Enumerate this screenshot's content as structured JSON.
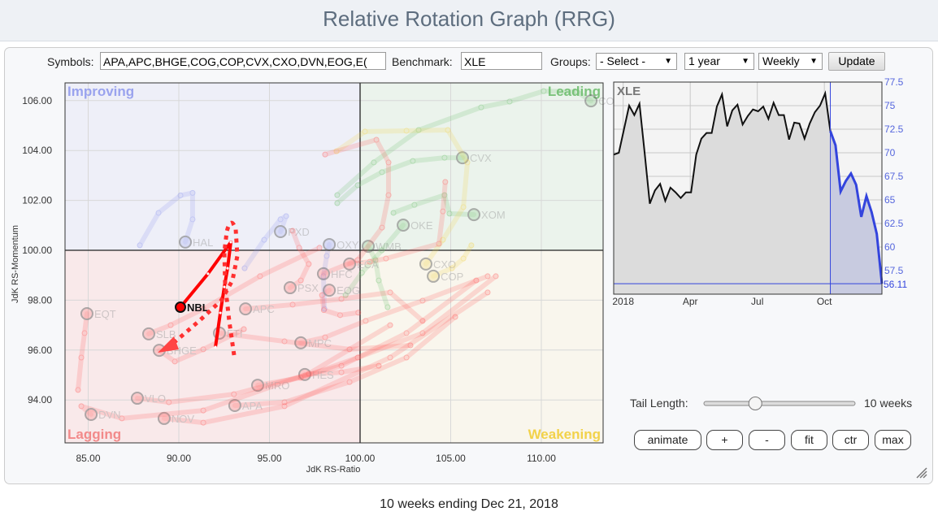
{
  "header": {
    "title": "Relative Rotation Graph (RRG)"
  },
  "controls": {
    "symbols_label": "Symbols:",
    "symbols_value": "APA,APC,BHGE,COG,COP,CVX,CXO,DVN,EOG,E(",
    "benchmark_label": "Benchmark:",
    "benchmark_value": "XLE",
    "groups_label": "Groups:",
    "groups_selected": "- Select -",
    "period_selected": "1 year",
    "frequency_selected": "Weekly",
    "update_label": "Update",
    "tail_length_label": "Tail Length:",
    "tail_length_value": "10 weeks",
    "tail_length_weeks": 10,
    "tail_slider_fraction": 0.34,
    "buttons": [
      "animate",
      "+",
      "-",
      "fit",
      "ctr",
      "max"
    ]
  },
  "footer": {
    "caption": "10 weeks ending Dec 21, 2018"
  },
  "chart_data": [
    {
      "type": "scatter",
      "title": "",
      "xlabel": "JdK RS-Ratio",
      "ylabel": "JdK RS-Momentum",
      "xlim": [
        82.9,
        112.6
      ],
      "ylim": [
        92.5,
        106.6
      ],
      "xticks": [
        "85.00",
        "90.00",
        "95.00",
        "100.00",
        "105.00",
        "110.00"
      ],
      "yticks": [
        "94.00",
        "96.00",
        "98.00",
        "100.00",
        "102.00",
        "104.00",
        "106.00"
      ],
      "grid": true,
      "quadrants": {
        "improving": "Improving",
        "leading": "Leading",
        "weakening": "Weakening",
        "lagging": "Lagging"
      },
      "colors": {
        "improving": "#8c95ee",
        "leading": "#6cbf6c",
        "weakening": "#f2d24a",
        "lagging": "#ff5a5a",
        "highlight": "#ff0000"
      },
      "highlight": {
        "name": "NBL",
        "tail": [
          [
            92.02,
            96.12
          ],
          [
            92.29,
            97.49
          ],
          [
            92.51,
            98.53
          ],
          [
            92.69,
            99.28
          ],
          [
            92.87,
            100.33
          ],
          [
            91.61,
            99.06
          ],
          [
            90.09,
            97.72
          ]
        ]
      },
      "series": [
        {
          "name": "HAL",
          "q": "improving",
          "tail": [
            [
              87.85,
              100.2
            ],
            [
              88.88,
              101.5
            ],
            [
              90.09,
              102.2
            ],
            [
              90.76,
              102.3
            ],
            [
              90.76,
              101.24
            ],
            [
              90.36,
              100.33
            ]
          ]
        },
        {
          "name": "PXD",
          "q": "improving",
          "tail": [
            [
              93.63,
              99.28
            ],
            [
              94.71,
              100.42
            ],
            [
              95.61,
              101.24
            ],
            [
              95.92,
              101.37
            ],
            [
              95.61,
              100.75
            ]
          ]
        },
        {
          "name": "OXY",
          "q": "improving",
          "tail": [
            [
              98.03,
              97.65
            ],
            [
              97.98,
              98.96
            ],
            [
              98.16,
              99.77
            ],
            [
              98.3,
              100.23
            ]
          ]
        },
        {
          "name": "WMB",
          "q": "leading",
          "tail": [
            [
              101.52,
              97.72
            ],
            [
              101.03,
              98.79
            ],
            [
              100.85,
              99.61
            ],
            [
              100.45,
              100.16
            ]
          ]
        },
        {
          "name": "OKE",
          "q": "leading",
          "tail": [
            [
              99.2,
              98.2
            ],
            [
              100.1,
              99.1
            ],
            [
              101.2,
              100.0
            ],
            [
              102.38,
              101.01
            ]
          ]
        },
        {
          "name": "CVX",
          "q": "leading",
          "tail": [
            [
              98.74,
              101.89
            ],
            [
              99.87,
              102.61
            ],
            [
              101.21,
              103.13
            ],
            [
              102.91,
              103.58
            ],
            [
              104.66,
              103.71
            ],
            [
              105.65,
              103.71
            ]
          ]
        },
        {
          "name": "XOM",
          "q": "leading",
          "tail": [
            [
              101.84,
              101.5
            ],
            [
              103.0,
              101.82
            ],
            [
              104.66,
              102.21
            ],
            [
              104.93,
              101.47
            ],
            [
              106.28,
              101.43
            ]
          ]
        },
        {
          "name": "COG",
          "q": "leading",
          "tail": [
            [
              98.74,
              102.21
            ],
            [
              100.76,
              103.52
            ],
            [
              103.23,
              104.82
            ],
            [
              106.68,
              105.73
            ],
            [
              108.25,
              105.96
            ],
            [
              110.13,
              106.38
            ],
            [
              111.97,
              106.35
            ],
            [
              112.74,
              105.99
            ]
          ]
        },
        {
          "name": "CXO",
          "q": "weakening",
          "tail": [
            [
              98.7,
              103.97
            ],
            [
              100.27,
              104.76
            ],
            [
              102.56,
              104.79
            ],
            [
              104.84,
              104.82
            ],
            [
              105.92,
              103.52
            ],
            [
              105.7,
              101.73
            ],
            [
              104.57,
              100.42
            ],
            [
              103.63,
              99.45
            ]
          ]
        },
        {
          "name": "COP",
          "q": "weakening",
          "tail": [
            [
              106.14,
              100.2
            ],
            [
              105.7,
              99.67
            ],
            [
              105.07,
              99.28
            ],
            [
              104.04,
              98.96
            ]
          ]
        },
        {
          "name": "ECA",
          "q": "lagging",
          "tail": [
            [
              104.7,
              102.74
            ],
            [
              104.57,
              101.56
            ],
            [
              104.35,
              100.26
            ],
            [
              101.43,
              99.67
            ],
            [
              100.54,
              99.54
            ],
            [
              99.42,
              99.45
            ]
          ]
        },
        {
          "name": "HFC",
          "q": "lagging",
          "tail": [
            [
              98.07,
              103.84
            ],
            [
              100.9,
              104.43
            ],
            [
              101.57,
              103.52
            ],
            [
              101.57,
              102.21
            ],
            [
              101.21,
              100.91
            ],
            [
              99.87,
              99.61
            ],
            [
              97.98,
              99.06
            ]
          ]
        },
        {
          "name": "EOG",
          "q": "lagging",
          "tail": [
            [
              99.9,
              97.5
            ],
            [
              98.9,
              97.4
            ],
            [
              98.0,
              97.6
            ],
            [
              97.9,
              98.2
            ],
            [
              98.3,
              98.4
            ]
          ]
        },
        {
          "name": "PSX",
          "q": "lagging",
          "tail": [
            [
              96.28,
              100.78
            ],
            [
              96.64,
              100.1
            ],
            [
              97.17,
              99.45
            ],
            [
              96.73,
              98.79
            ],
            [
              96.14,
              98.5
            ]
          ]
        },
        {
          "name": "APC",
          "q": "lagging",
          "tail": [
            [
              103.45,
              97.17
            ],
            [
              101.66,
              98.31
            ],
            [
              98.97,
              98.05
            ],
            [
              96.28,
              97.82
            ],
            [
              93.68,
              97.65
            ]
          ]
        },
        {
          "name": "FTI",
          "q": "lagging",
          "tail": [
            [
              102.78,
              96.19
            ],
            [
              99.42,
              96.03
            ],
            [
              95.83,
              96.35
            ],
            [
              92.24,
              96.68
            ]
          ]
        },
        {
          "name": "MPC",
          "q": "lagging",
          "tail": [
            [
              107.04,
              98.96
            ],
            [
              103.45,
              97.98
            ],
            [
              100.31,
              97.17
            ],
            [
              98.07,
              96.51
            ],
            [
              96.73,
              96.29
            ]
          ]
        },
        {
          "name": "HES",
          "q": "lagging",
          "tail": [
            [
              101.03,
              95.37
            ],
            [
              98.97,
              95.11
            ],
            [
              96.95,
              95.02
            ]
          ]
        },
        {
          "name": "MRO",
          "q": "lagging",
          "tail": [
            [
              107.49,
              98.96
            ],
            [
              103.45,
              96.68
            ],
            [
              99.87,
              95.7
            ],
            [
              96.73,
              94.89
            ],
            [
              94.35,
              94.59
            ]
          ]
        },
        {
          "name": "APA",
          "q": "lagging",
          "tail": [
            [
              105.25,
              97.33
            ],
            [
              102.56,
              95.7
            ],
            [
              99.42,
              94.72
            ],
            [
              95.83,
              93.91
            ],
            [
              93.09,
              93.78
            ]
          ]
        },
        {
          "name": "VLO",
          "q": "lagging",
          "tail": [
            [
              106.41,
              98.79
            ],
            [
              102.56,
              96.68
            ],
            [
              98.97,
              95.37
            ],
            [
              93.04,
              94.23
            ],
            [
              89.45,
              93.91
            ],
            [
              87.71,
              94.07
            ]
          ]
        },
        {
          "name": "NOV",
          "q": "lagging",
          "tail": [
            [
              107.04,
              98.31
            ],
            [
              101.66,
              95.7
            ],
            [
              95.83,
              93.75
            ],
            [
              91.35,
              93.09
            ],
            [
              89.19,
              93.26
            ]
          ]
        },
        {
          "name": "DVN",
          "q": "lagging",
          "tail": [
            [
              101.66,
              97.0
            ],
            [
              97.17,
              95.05
            ],
            [
              91.35,
              93.58
            ],
            [
              86.86,
              93.26
            ],
            [
              84.62,
              93.75
            ],
            [
              85.16,
              93.42
            ]
          ]
        },
        {
          "name": "EQT",
          "q": "lagging",
          "tail": [
            [
              84.44,
              94.4
            ],
            [
              84.62,
              95.7
            ],
            [
              84.8,
              96.68
            ],
            [
              84.93,
              97.46
            ]
          ]
        },
        {
          "name": "SLB",
          "q": "lagging",
          "tail": [
            [
              97.76,
              100.1
            ],
            [
              94.48,
              98.96
            ],
            [
              91.35,
              97.65
            ],
            [
              89.55,
              97.0
            ],
            [
              88.34,
              96.65
            ]
          ]
        },
        {
          "name": "BHGE",
          "q": "lagging",
          "tail": [
            [
              93.59,
              96.84
            ],
            [
              91.35,
              96.03
            ],
            [
              89.78,
              95.54
            ],
            [
              88.92,
              95.99
            ]
          ]
        }
      ]
    },
    {
      "type": "area",
      "title": "XLE",
      "ylim": [
        55,
        77.5
      ],
      "yticks": [
        "77.5",
        "75",
        "72.5",
        "70",
        "67.5",
        "65",
        "62.5",
        "60",
        "57.5"
      ],
      "xticks": [
        "2018",
        "Apr",
        "Jul",
        "Oct"
      ],
      "last_value": "56.11",
      "colors": {
        "line": "#111111",
        "tail": "#3344dd",
        "fill": "#dcdcdc",
        "tail_fill": "#c8cbe0"
      },
      "values": [
        69.8,
        70.0,
        72.5,
        75.0,
        74.0,
        75.2,
        70.0,
        64.6,
        66.0,
        66.7,
        64.9,
        66.3,
        65.8,
        65.2,
        65.8,
        65.8,
        69.8,
        71.5,
        72.1,
        72.1,
        74.9,
        76.2,
        72.8,
        74.5,
        75.1,
        73.0,
        73.9,
        74.6,
        74.4,
        74.9,
        73.6,
        75.3,
        74.0,
        74.0,
        71.4,
        73.2,
        73.1,
        71.5,
        73.1,
        74.3,
        75.0,
        76.3,
        72.3,
        70.8,
        65.9,
        67.0,
        67.8,
        66.6,
        63.2,
        65.4,
        63.7,
        61.4,
        56.11
      ]
    }
  ]
}
